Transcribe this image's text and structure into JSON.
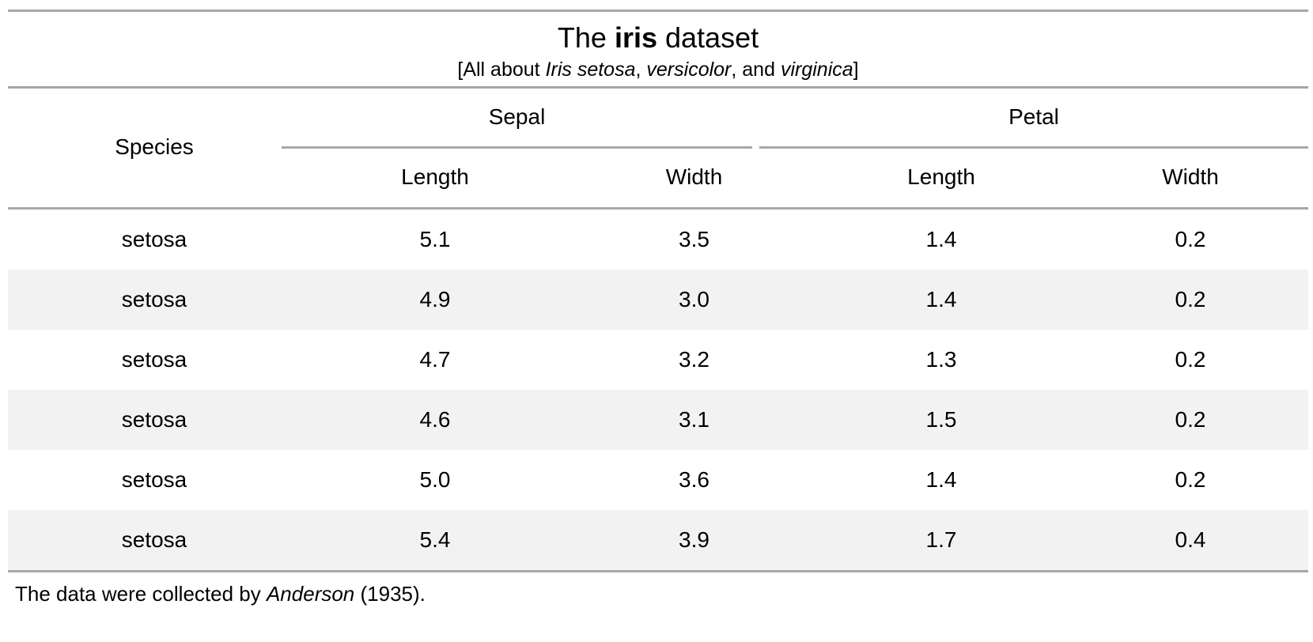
{
  "table": {
    "title_pre": "The ",
    "title_bold": "iris",
    "title_post": " dataset",
    "subtitle": {
      "open": "[All about ",
      "italic1": "Iris setosa",
      "sep1": ", ",
      "italic2": "versicolor",
      "sep2": ", and ",
      "italic3": "virginica",
      "close": "]"
    },
    "stub_header": "Species",
    "spanners": [
      "Sepal",
      "Petal"
    ],
    "columns": [
      "Length",
      "Width",
      "Length",
      "Width"
    ],
    "rows": [
      [
        "setosa",
        "5.1",
        "3.5",
        "1.4",
        "0.2"
      ],
      [
        "setosa",
        "4.9",
        "3.0",
        "1.4",
        "0.2"
      ],
      [
        "setosa",
        "4.7",
        "3.2",
        "1.3",
        "0.2"
      ],
      [
        "setosa",
        "4.6",
        "3.1",
        "1.5",
        "0.2"
      ],
      [
        "setosa",
        "5.0",
        "3.6",
        "1.4",
        "0.2"
      ],
      [
        "setosa",
        "5.4",
        "3.9",
        "1.7",
        "0.4"
      ]
    ],
    "footnote": {
      "pre": "The data were collected by ",
      "italic": "Anderson",
      "post": " (1935)."
    }
  },
  "colors": {
    "rule": "#a8a8a8",
    "stripe": "#f2f2f2",
    "text": "#000000"
  }
}
